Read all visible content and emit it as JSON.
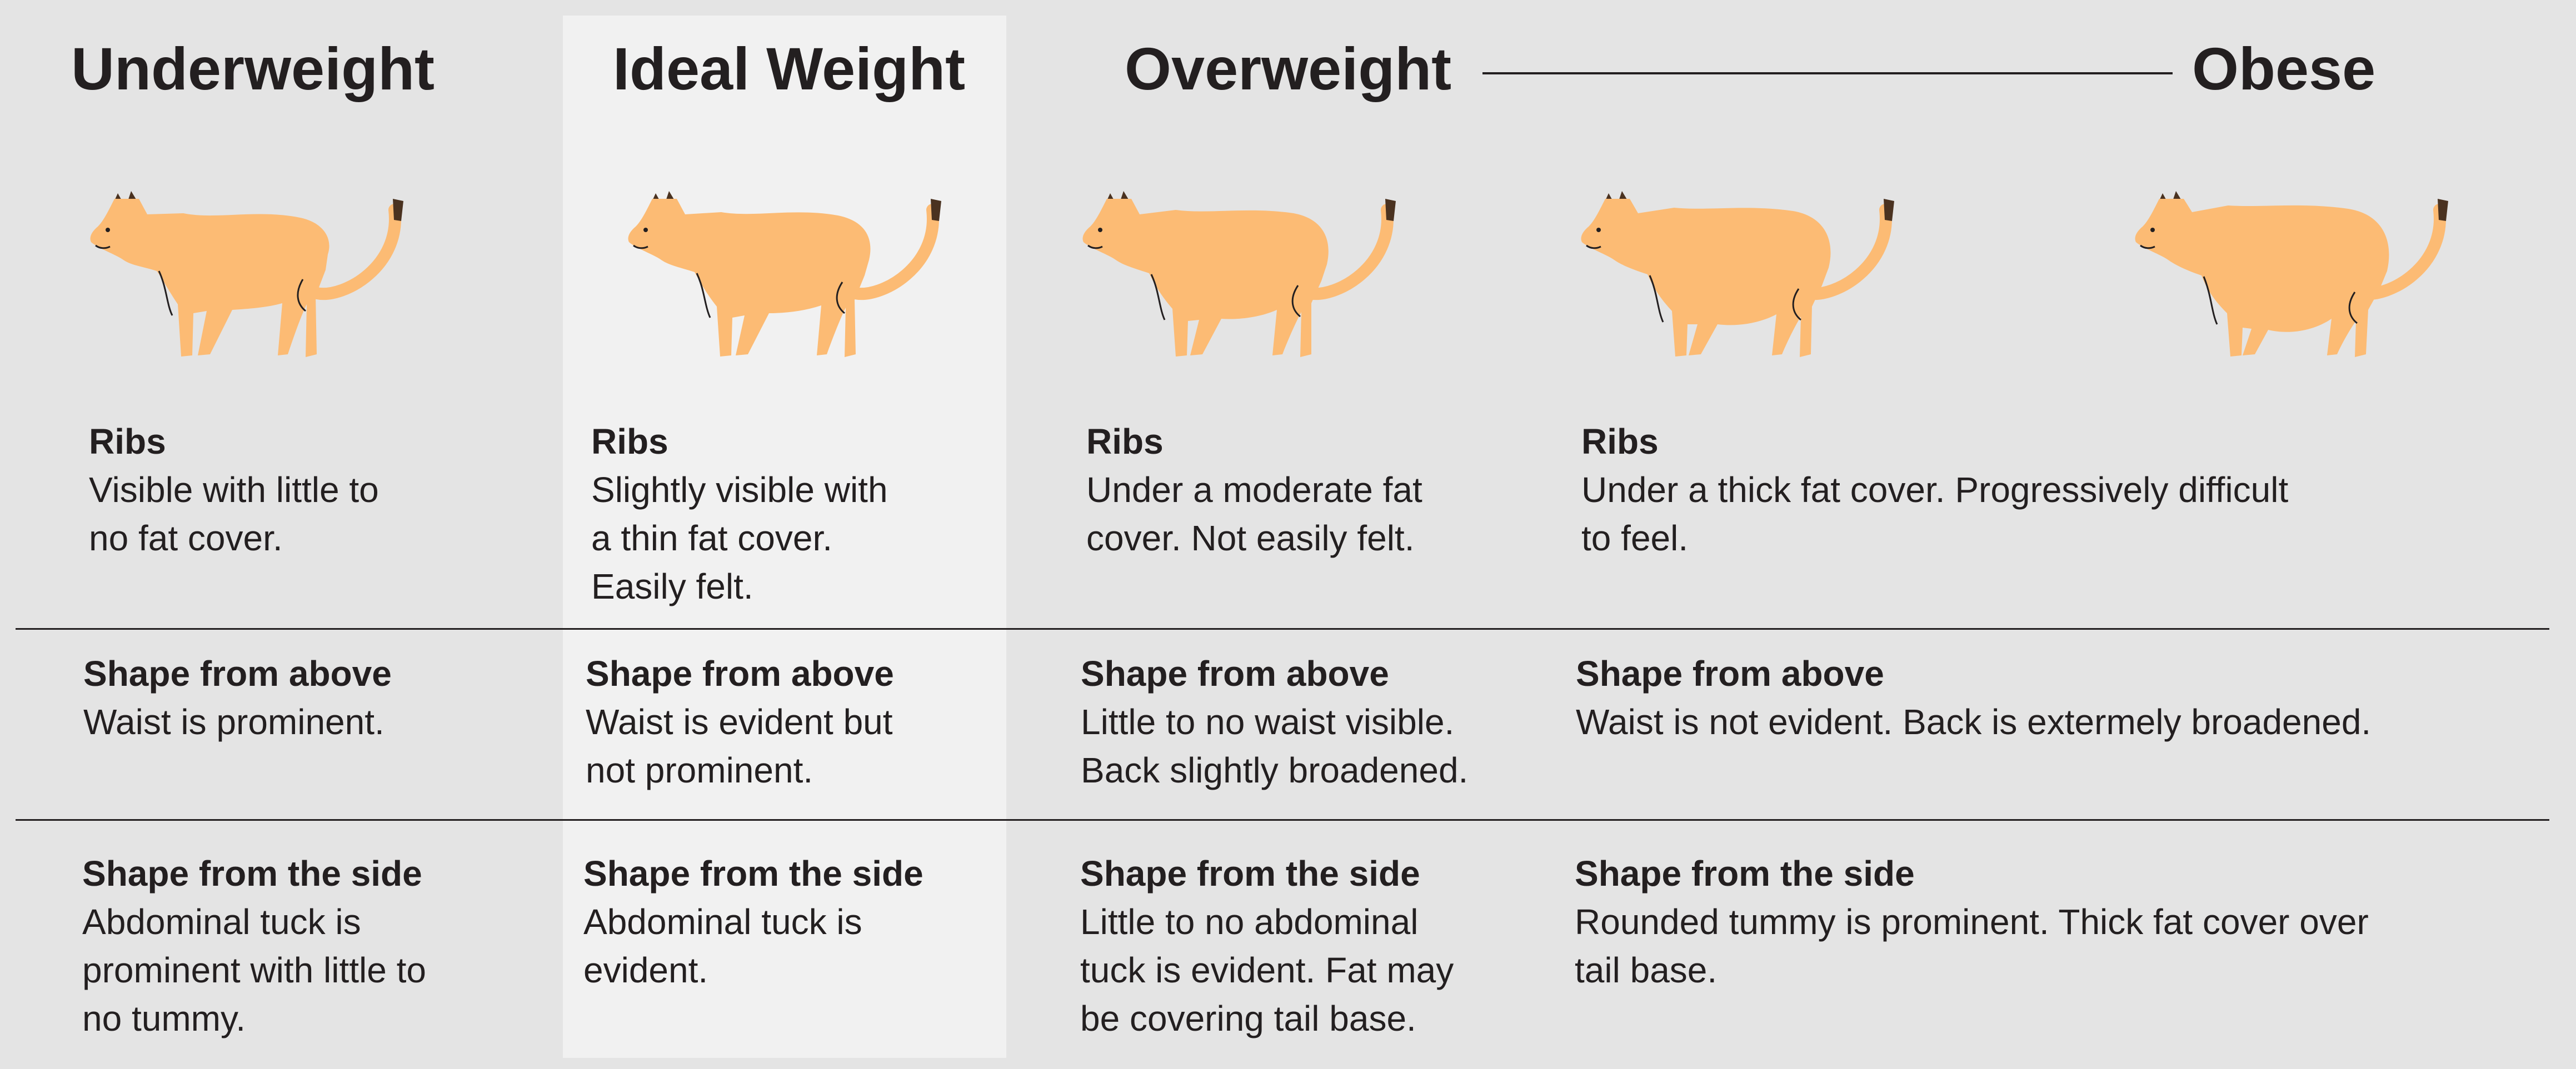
{
  "headings": {
    "underweight": "Underweight",
    "ideal": "Ideal Weight",
    "overweight": "Overweight",
    "obese": "Obese"
  },
  "colors": {
    "background": "#e4e4e4",
    "highlight": "#f1f1f1",
    "cat_body": "#fcbb74",
    "cat_tip": "#4a3220",
    "text": "#231f20"
  },
  "icons": [
    "cat-underweight-icon",
    "cat-ideal-icon",
    "cat-overweight-icon",
    "cat-overweight-heavy-icon",
    "cat-obese-icon"
  ],
  "rows": {
    "ribs": {
      "underweight": {
        "title": "Ribs",
        "desc": "Visible with little to\nno fat cover."
      },
      "ideal": {
        "title": "Ribs",
        "desc": "Slightly visible with\na thin fat cover.\nEasily felt."
      },
      "overweight": {
        "title": "Ribs",
        "desc": "Under a moderate fat\ncover. Not easily felt."
      },
      "obese": {
        "title": "Ribs",
        "desc": "Under a thick fat cover. Progressively difficult\nto feel."
      }
    },
    "above": {
      "underweight": {
        "title": "Shape from above",
        "desc": "Waist is prominent."
      },
      "ideal": {
        "title": "Shape from above",
        "desc": "Waist is evident but\nnot prominent."
      },
      "overweight": {
        "title": "Shape from above",
        "desc": "Little to no waist visible.\nBack slightly broadened."
      },
      "obese": {
        "title": "Shape from above",
        "desc": "Waist is not evident. Back is extermely broadened."
      }
    },
    "side": {
      "underweight": {
        "title": "Shape from the side",
        "desc": "Abdominal tuck is\nprominent with little to\nno tummy."
      },
      "ideal": {
        "title": "Shape from the side",
        "desc": "Abdominal tuck is\nevident."
      },
      "overweight": {
        "title": "Shape from the side",
        "desc": "Little to no abdominal\ntuck is evident. Fat may\nbe covering tail base."
      },
      "obese": {
        "title": "Shape from the side",
        "desc": "Rounded tummy is prominent. Thick fat cover over\ntail base."
      }
    }
  }
}
